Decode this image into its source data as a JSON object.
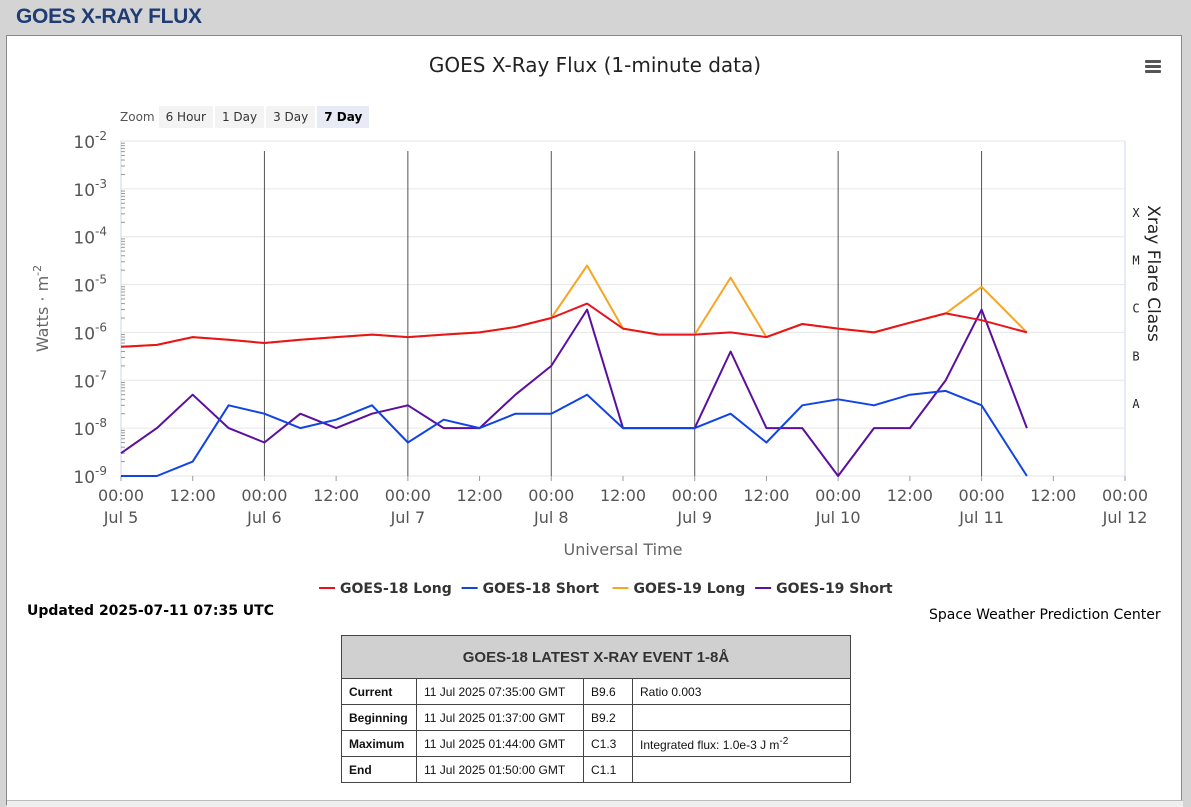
{
  "page": {
    "title": "GOES X-RAY FLUX"
  },
  "chart_data": {
    "type": "line",
    "title": "GOES X-Ray Flux (1-minute data)",
    "xlabel": "Universal Time",
    "ylabel": "Watts · m",
    "ylabel_sup": "-2",
    "ylabel_right": "Xray Flare Class",
    "yscale": "log",
    "ylim": [
      1e-09,
      0.01
    ],
    "y_ticks": [
      {
        "base": "10",
        "exp": "-2",
        "value": 0.01
      },
      {
        "base": "10",
        "exp": "-3",
        "value": 0.001
      },
      {
        "base": "10",
        "exp": "-4",
        "value": 0.0001
      },
      {
        "base": "10",
        "exp": "-5",
        "value": 1e-05
      },
      {
        "base": "10",
        "exp": "-6",
        "value": 1e-06
      },
      {
        "base": "10",
        "exp": "-7",
        "value": 1e-07
      },
      {
        "base": "10",
        "exp": "-8",
        "value": 1e-08
      },
      {
        "base": "10",
        "exp": "-9",
        "value": 1e-09
      }
    ],
    "flare_classes": [
      {
        "label": "X",
        "value": 0.0003162
      },
      {
        "label": "M",
        "value": 3.162e-05
      },
      {
        "label": "C",
        "value": 3.162e-06
      },
      {
        "label": "B",
        "value": 3.162e-07
      },
      {
        "label": "A",
        "value": 3.162e-08
      }
    ],
    "xlim": [
      "2025-07-05 00:00",
      "2025-07-12 00:00"
    ],
    "x_ticks": [
      {
        "at": "2025-07-05 00:00",
        "time": "00:00",
        "date": "Jul 5"
      },
      {
        "at": "2025-07-05 12:00",
        "time": "12:00",
        "date": ""
      },
      {
        "at": "2025-07-06 00:00",
        "time": "00:00",
        "date": "Jul 6"
      },
      {
        "at": "2025-07-06 12:00",
        "time": "12:00",
        "date": ""
      },
      {
        "at": "2025-07-07 00:00",
        "time": "00:00",
        "date": "Jul 7"
      },
      {
        "at": "2025-07-07 12:00",
        "time": "12:00",
        "date": ""
      },
      {
        "at": "2025-07-08 00:00",
        "time": "00:00",
        "date": "Jul 8"
      },
      {
        "at": "2025-07-08 12:00",
        "time": "12:00",
        "date": ""
      },
      {
        "at": "2025-07-09 00:00",
        "time": "00:00",
        "date": "Jul 9"
      },
      {
        "at": "2025-07-09 12:00",
        "time": "12:00",
        "date": ""
      },
      {
        "at": "2025-07-10 00:00",
        "time": "00:00",
        "date": "Jul 10"
      },
      {
        "at": "2025-07-10 12:00",
        "time": "12:00",
        "date": ""
      },
      {
        "at": "2025-07-11 00:00",
        "time": "00:00",
        "date": "Jul 11"
      },
      {
        "at": "2025-07-11 12:00",
        "time": "12:00",
        "date": ""
      },
      {
        "at": "2025-07-12 00:00",
        "time": "00:00",
        "date": "Jul 12"
      }
    ],
    "day_lines": [
      "2025-07-06 00:00",
      "2025-07-07 00:00",
      "2025-07-08 00:00",
      "2025-07-09 00:00",
      "2025-07-10 00:00",
      "2025-07-11 00:00"
    ],
    "series": [
      {
        "name": "GOES-18 Long",
        "color": "#e8141b",
        "x": [
          "2025-07-05 00:00",
          "2025-07-05 06:00",
          "2025-07-05 12:00",
          "2025-07-05 18:00",
          "2025-07-06 00:00",
          "2025-07-06 06:00",
          "2025-07-06 12:00",
          "2025-07-06 18:00",
          "2025-07-07 00:00",
          "2025-07-07 06:00",
          "2025-07-07 12:00",
          "2025-07-07 18:00",
          "2025-07-08 00:00",
          "2025-07-08 06:00",
          "2025-07-08 12:00",
          "2025-07-08 18:00",
          "2025-07-09 00:00",
          "2025-07-09 06:00",
          "2025-07-09 12:00",
          "2025-07-09 18:00",
          "2025-07-10 00:00",
          "2025-07-10 06:00",
          "2025-07-10 12:00",
          "2025-07-10 18:00",
          "2025-07-11 00:00",
          "2025-07-11 07:35"
        ],
        "y": [
          5e-07,
          5.5e-07,
          8e-07,
          7e-07,
          6e-07,
          7e-07,
          8e-07,
          9e-07,
          8e-07,
          9e-07,
          1e-06,
          1.3e-06,
          2e-06,
          4e-06,
          1.2e-06,
          9e-07,
          9e-07,
          1e-06,
          8e-07,
          1.5e-06,
          1.2e-06,
          1e-06,
          1.6e-06,
          2.5e-06,
          1.8e-06,
          1e-06
        ]
      },
      {
        "name": "GOES-18 Short",
        "color": "#1143e5",
        "x": [
          "2025-07-05 00:00",
          "2025-07-05 06:00",
          "2025-07-05 12:00",
          "2025-07-05 18:00",
          "2025-07-06 00:00",
          "2025-07-06 06:00",
          "2025-07-06 12:00",
          "2025-07-06 18:00",
          "2025-07-07 00:00",
          "2025-07-07 06:00",
          "2025-07-07 12:00",
          "2025-07-07 18:00",
          "2025-07-08 00:00",
          "2025-07-08 06:00",
          "2025-07-08 12:00",
          "2025-07-08 18:00",
          "2025-07-09 00:00",
          "2025-07-09 06:00",
          "2025-07-09 12:00",
          "2025-07-09 18:00",
          "2025-07-10 00:00",
          "2025-07-10 06:00",
          "2025-07-10 12:00",
          "2025-07-10 18:00",
          "2025-07-11 00:00",
          "2025-07-11 07:35"
        ],
        "y": [
          1e-09,
          1e-09,
          2e-09,
          3e-08,
          2e-08,
          1e-08,
          1.5e-08,
          3e-08,
          5e-09,
          1.5e-08,
          1e-08,
          2e-08,
          2e-08,
          5e-08,
          1e-08,
          1e-08,
          1e-08,
          2e-08,
          5e-09,
          3e-08,
          4e-08,
          3e-08,
          5e-08,
          6e-08,
          3e-08,
          1e-09
        ]
      },
      {
        "name": "GOES-19 Long",
        "color": "#f5a623",
        "x": [
          "2025-07-05 00:00",
          "2025-07-05 06:00",
          "2025-07-05 12:00",
          "2025-07-05 18:00",
          "2025-07-06 00:00",
          "2025-07-06 06:00",
          "2025-07-06 12:00",
          "2025-07-06 18:00",
          "2025-07-07 00:00",
          "2025-07-07 06:00",
          "2025-07-07 12:00",
          "2025-07-07 18:00",
          "2025-07-08 00:00",
          "2025-07-08 06:00",
          "2025-07-08 12:00",
          "2025-07-08 18:00",
          "2025-07-09 00:00",
          "2025-07-09 06:00",
          "2025-07-09 12:00",
          "2025-07-09 18:00",
          "2025-07-10 00:00",
          "2025-07-10 06:00",
          "2025-07-10 12:00",
          "2025-07-10 18:00",
          "2025-07-11 00:00",
          "2025-07-11 07:35"
        ],
        "y": [
          5e-07,
          5.5e-07,
          8e-07,
          7e-07,
          6e-07,
          7e-07,
          8e-07,
          9e-07,
          8e-07,
          9e-07,
          1e-06,
          1.3e-06,
          2e-06,
          2.5e-05,
          1.2e-06,
          9e-07,
          9e-07,
          1.4e-05,
          8e-07,
          1.5e-06,
          1.2e-06,
          1e-06,
          1.6e-06,
          2.5e-06,
          9e-06,
          1e-06
        ]
      },
      {
        "name": "GOES-19 Short",
        "color": "#5b0f9e",
        "x": [
          "2025-07-05 00:00",
          "2025-07-05 06:00",
          "2025-07-05 12:00",
          "2025-07-05 18:00",
          "2025-07-06 00:00",
          "2025-07-06 06:00",
          "2025-07-06 12:00",
          "2025-07-06 18:00",
          "2025-07-07 00:00",
          "2025-07-07 06:00",
          "2025-07-07 12:00",
          "2025-07-07 18:00",
          "2025-07-08 00:00",
          "2025-07-08 06:00",
          "2025-07-08 12:00",
          "2025-07-08 18:00",
          "2025-07-09 00:00",
          "2025-07-09 06:00",
          "2025-07-09 12:00",
          "2025-07-09 18:00",
          "2025-07-10 00:00",
          "2025-07-10 06:00",
          "2025-07-10 12:00",
          "2025-07-10 18:00",
          "2025-07-11 00:00",
          "2025-07-11 07:35"
        ],
        "y": [
          3e-09,
          1e-08,
          5e-08,
          1e-08,
          5e-09,
          2e-08,
          1e-08,
          2e-08,
          3e-08,
          1e-08,
          1e-08,
          5e-08,
          2e-07,
          3e-06,
          1e-08,
          1e-08,
          1e-08,
          4e-07,
          1e-08,
          1e-08,
          1e-09,
          1e-08,
          1e-08,
          1e-07,
          3e-06,
          1e-08
        ]
      }
    ],
    "legend": "bottom-center"
  },
  "toolbar": {
    "zoom_label": "Zoom",
    "zoom_options": [
      "6 Hour",
      "1 Day",
      "3 Day",
      "7 Day"
    ],
    "zoom_selected": "7 Day",
    "menu_icon": "hamburger-menu-icon"
  },
  "updated": "Updated 2025-07-11 07:35 UTC",
  "credit": "Space Weather Prediction Center",
  "event_table": {
    "title": "GOES-18 LATEST X-RAY EVENT 1-8Å",
    "rows": [
      {
        "label": "Current",
        "time": "11 Jul 2025 07:35:00 GMT",
        "class": "B9.6",
        "extra": "Ratio 0.003"
      },
      {
        "label": "Beginning",
        "time": "11 Jul 2025 01:37:00 GMT",
        "class": "B9.2",
        "extra": ""
      },
      {
        "label": "Maximum",
        "time": "11 Jul 2025 01:44:00 GMT",
        "class": "C1.3",
        "extra": "Integrated flux: 1.0e-3 J m",
        "extra_sup": "-2"
      },
      {
        "label": "End",
        "time": "11 Jul 2025 01:50:00 GMT",
        "class": "C1.1",
        "extra": ""
      }
    ]
  }
}
